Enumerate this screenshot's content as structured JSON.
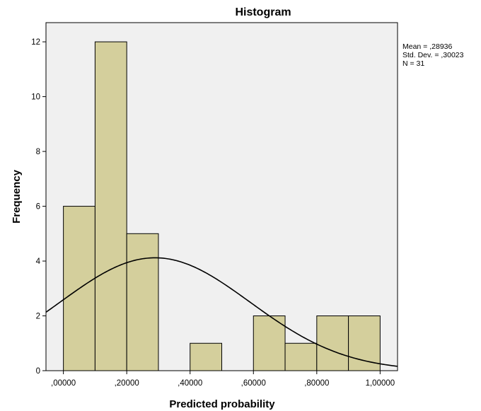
{
  "chart_data": {
    "type": "bar",
    "title": "Histogram",
    "xlabel": "Predicted probability",
    "ylabel": "Frequency",
    "bins": [
      {
        "x0": 0.0,
        "x1": 0.1,
        "value": 6
      },
      {
        "x0": 0.1,
        "x1": 0.2,
        "value": 12
      },
      {
        "x0": 0.2,
        "x1": 0.3,
        "value": 5
      },
      {
        "x0": 0.3,
        "x1": 0.4,
        "value": 0
      },
      {
        "x0": 0.4,
        "x1": 0.5,
        "value": 1
      },
      {
        "x0": 0.5,
        "x1": 0.6,
        "value": 0
      },
      {
        "x0": 0.6,
        "x1": 0.7,
        "value": 2
      },
      {
        "x0": 0.7,
        "x1": 0.8,
        "value": 1
      },
      {
        "x0": 0.8,
        "x1": 0.9,
        "value": 2
      },
      {
        "x0": 0.9,
        "x1": 1.0,
        "value": 2
      }
    ],
    "xlim": [
      -0.055,
      1.055
    ],
    "ylim": [
      0,
      12.7
    ],
    "x_ticks": [
      {
        "value": 0.0,
        "label": ",00000"
      },
      {
        "value": 0.2,
        "label": ",20000"
      },
      {
        "value": 0.4,
        "label": ",40000"
      },
      {
        "value": 0.6,
        "label": ",60000"
      },
      {
        "value": 0.8,
        "label": ",80000"
      },
      {
        "value": 1.0,
        "label": "1,00000"
      }
    ],
    "y_ticks": [
      {
        "value": 0,
        "label": "0"
      },
      {
        "value": 2,
        "label": "2"
      },
      {
        "value": 4,
        "label": "4"
      },
      {
        "value": 6,
        "label": "6"
      },
      {
        "value": 8,
        "label": "8"
      },
      {
        "value": 10,
        "label": "10"
      },
      {
        "value": 12,
        "label": "12"
      }
    ],
    "normal_curve": {
      "mean": 0.28936,
      "std_dev": 0.30023,
      "n": 31,
      "bin_width": 0.1
    },
    "stats": {
      "mean": "Mean = ,28936",
      "std_dev": "Std. Dev. = ,30023",
      "n": "N = 31"
    },
    "grid": false,
    "colors": {
      "bar_fill": "#d4cf9c",
      "bar_stroke": "#000000",
      "plot_background": "#f0f0f0",
      "curve": "#000000"
    }
  }
}
